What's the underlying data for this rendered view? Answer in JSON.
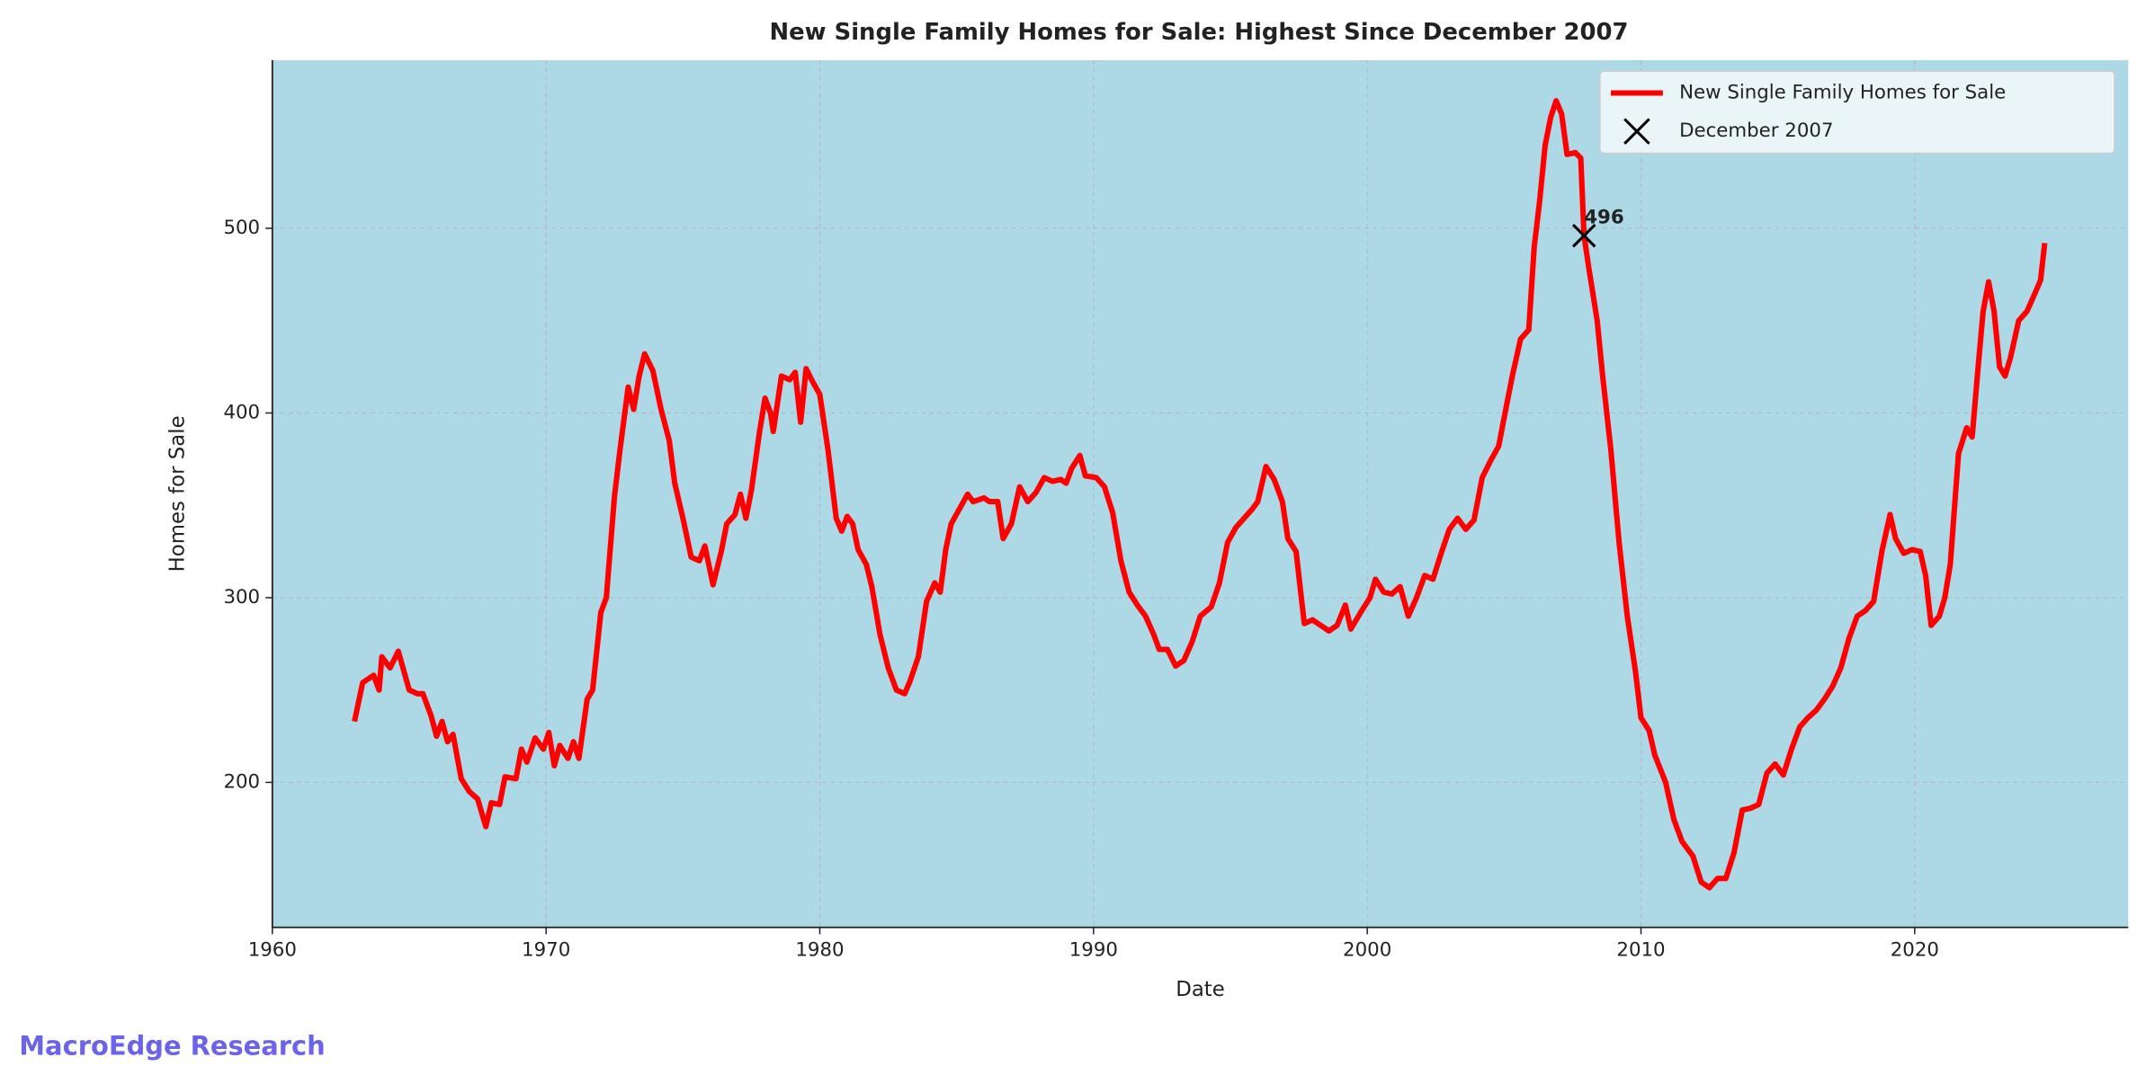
{
  "chart_data": {
    "type": "line",
    "title": "New Single Family Homes for Sale: Highest Since December 2007",
    "xlabel": "Date",
    "ylabel": "Homes for Sale",
    "watermark": "MacroEdge Research",
    "background": "#add8e6",
    "grid": true,
    "legend": "upper right",
    "xlim": [
      1960,
      2027.8
    ],
    "ylim": [
      121.5,
      591
    ],
    "xticks": [
      1960,
      1970,
      1980,
      1990,
      2000,
      2010,
      2020
    ],
    "yticks": [
      200,
      300,
      400,
      500
    ],
    "x": [
      1963.0,
      1963.3,
      1963.7,
      1963.9,
      1964.0,
      1964.3,
      1964.6,
      1965.0,
      1965.3,
      1965.5,
      1965.8,
      1966.0,
      1966.2,
      1966.4,
      1966.6,
      1966.9,
      1967.2,
      1967.5,
      1967.8,
      1968.0,
      1968.3,
      1968.5,
      1968.9,
      1969.1,
      1969.3,
      1969.6,
      1969.9,
      1970.1,
      1970.3,
      1970.5,
      1970.8,
      1971.0,
      1971.2,
      1971.5,
      1971.7,
      1972.0,
      1972.2,
      1972.5,
      1972.7,
      1973.0,
      1973.2,
      1973.4,
      1973.6,
      1973.9,
      1974.2,
      1974.5,
      1974.7,
      1975.0,
      1975.3,
      1975.6,
      1975.8,
      1976.1,
      1976.4,
      1976.6,
      1976.9,
      1977.1,
      1977.3,
      1977.5,
      1977.8,
      1978.0,
      1978.2,
      1978.3,
      1978.6,
      1978.9,
      1979.1,
      1979.3,
      1979.5,
      1979.7,
      1980.0,
      1980.3,
      1980.6,
      1980.8,
      1981.0,
      1981.2,
      1981.4,
      1981.7,
      1981.9,
      1982.2,
      1982.5,
      1982.8,
      1983.1,
      1983.3,
      1983.6,
      1983.9,
      1984.2,
      1984.4,
      1984.6,
      1984.8,
      1985.1,
      1985.4,
      1985.6,
      1986.0,
      1986.2,
      1986.5,
      1986.7,
      1987.0,
      1987.3,
      1987.6,
      1987.9,
      1988.2,
      1988.5,
      1988.8,
      1989.0,
      1989.2,
      1989.5,
      1989.7,
      1990.1,
      1990.4,
      1990.7,
      1991.0,
      1991.3,
      1991.6,
      1991.9,
      1992.2,
      1992.4,
      1992.7,
      1993.0,
      1993.3,
      1993.6,
      1993.9,
      1994.3,
      1994.6,
      1994.9,
      1995.2,
      1995.5,
      1995.8,
      1996.0,
      1996.3,
      1996.6,
      1996.9,
      1997.1,
      1997.4,
      1997.7,
      1998.0,
      1998.3,
      1998.6,
      1998.9,
      1999.2,
      1999.4,
      1999.8,
      2000.1,
      2000.3,
      2000.6,
      2000.9,
      2001.2,
      2001.5,
      2001.8,
      2002.1,
      2002.4,
      2002.7,
      2003.0,
      2003.3,
      2003.6,
      2003.9,
      2004.2,
      2004.5,
      2004.8,
      2005.1,
      2005.3,
      2005.6,
      2005.9,
      2006.1,
      2006.3,
      2006.5,
      2006.7,
      2006.9,
      2007.1,
      2007.3,
      2007.6,
      2007.8,
      2007.92,
      2008.1,
      2008.4,
      2008.6,
      2008.9,
      2009.2,
      2009.5,
      2009.8,
      2010.0,
      2010.3,
      2010.5,
      2010.9,
      2011.2,
      2011.5,
      2011.9,
      2012.2,
      2012.5,
      2012.8,
      2013.1,
      2013.4,
      2013.7,
      2014.0,
      2014.3,
      2014.6,
      2014.9,
      2015.2,
      2015.5,
      2015.8,
      2016.1,
      2016.4,
      2016.7,
      2017.0,
      2017.3,
      2017.6,
      2017.9,
      2018.2,
      2018.5,
      2018.8,
      2019.1,
      2019.3,
      2019.6,
      2019.9,
      2020.2,
      2020.4,
      2020.6,
      2020.9,
      2021.1,
      2021.3,
      2021.6,
      2021.9,
      2022.1,
      2022.3,
      2022.5,
      2022.7,
      2022.9,
      2023.1,
      2023.3,
      2023.5,
      2023.8,
      2024.1,
      2024.4,
      2024.6,
      2024.75
    ],
    "series": [
      {
        "name": "New Single Family Homes for Sale",
        "color": "#ff0000",
        "values": [
          233,
          254,
          258,
          250,
          268,
          262,
          271,
          250,
          248,
          248,
          236,
          225,
          233,
          222,
          226,
          202,
          195,
          191,
          176,
          189,
          188,
          203,
          202,
          218,
          211,
          224,
          218,
          227,
          209,
          220,
          213,
          222,
          213,
          245,
          250,
          292,
          300,
          355,
          380,
          414,
          402,
          420,
          432,
          423,
          402,
          385,
          362,
          343,
          322,
          320,
          328,
          307,
          325,
          340,
          345,
          356,
          343,
          358,
          390,
          408,
          400,
          390,
          420,
          418,
          422,
          395,
          424,
          418,
          410,
          380,
          343,
          336,
          344,
          340,
          326,
          318,
          306,
          280,
          262,
          250,
          248,
          255,
          268,
          298,
          308,
          303,
          326,
          340,
          348,
          356,
          352,
          354,
          352,
          352,
          332,
          340,
          360,
          352,
          357,
          365,
          363,
          364,
          362,
          370,
          377,
          366,
          365,
          360,
          346,
          320,
          303,
          296,
          290,
          280,
          272,
          272,
          263,
          266,
          276,
          290,
          295,
          308,
          330,
          338,
          343,
          348,
          352,
          371,
          364,
          352,
          332,
          325,
          286,
          288,
          285,
          282,
          285,
          296,
          283,
          293,
          300,
          310,
          303,
          302,
          306,
          290,
          300,
          312,
          310,
          324,
          337,
          343,
          337,
          342,
          365,
          374,
          382,
          405,
          420,
          440,
          445,
          490,
          515,
          545,
          560,
          569,
          562,
          540,
          541,
          538,
          496,
          478,
          450,
          420,
          380,
          330,
          290,
          260,
          235,
          228,
          215,
          200,
          180,
          168,
          160,
          146,
          143,
          148,
          148,
          162,
          185,
          186,
          188,
          205,
          210,
          204,
          218,
          230,
          235,
          239,
          245,
          252,
          262,
          278,
          290,
          293,
          298,
          325,
          345,
          332,
          324,
          326,
          325,
          312,
          285,
          290,
          300,
          318,
          378,
          392,
          387,
          422,
          455,
          471,
          455,
          425,
          420,
          430,
          450,
          455,
          465,
          472,
          492
        ]
      }
    ],
    "highlight": {
      "name": "December 2007",
      "color": "#000000",
      "x": 2007.92,
      "value": 496
    }
  }
}
